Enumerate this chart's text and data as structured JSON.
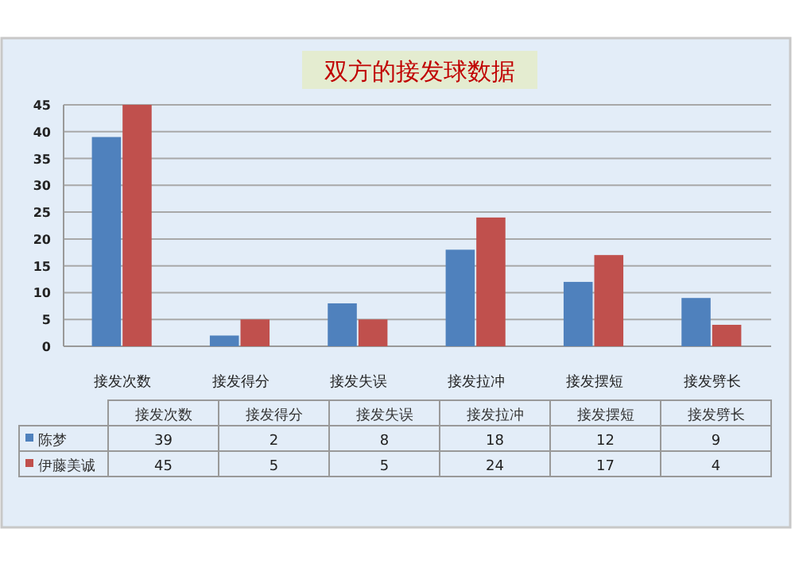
{
  "chart_data": {
    "type": "bar",
    "title": "双方的接发球数据",
    "categories": [
      "接发次数",
      "接发得分",
      "接发失误",
      "接发拉冲",
      "接发摆短",
      "接发劈长"
    ],
    "series": [
      {
        "name": "陈梦",
        "color": "#4f81bd",
        "values": [
          39,
          2,
          8,
          18,
          12,
          9
        ]
      },
      {
        "name": "伊藤美诚",
        "color": "#c0504d",
        "values": [
          45,
          5,
          5,
          24,
          17,
          4
        ]
      }
    ],
    "ylim": [
      0,
      45
    ],
    "yticks": [
      0,
      5,
      10,
      15,
      20,
      25,
      30,
      35,
      40,
      45
    ],
    "grid": "y",
    "legend": "bottom left",
    "data_labels": true
  }
}
